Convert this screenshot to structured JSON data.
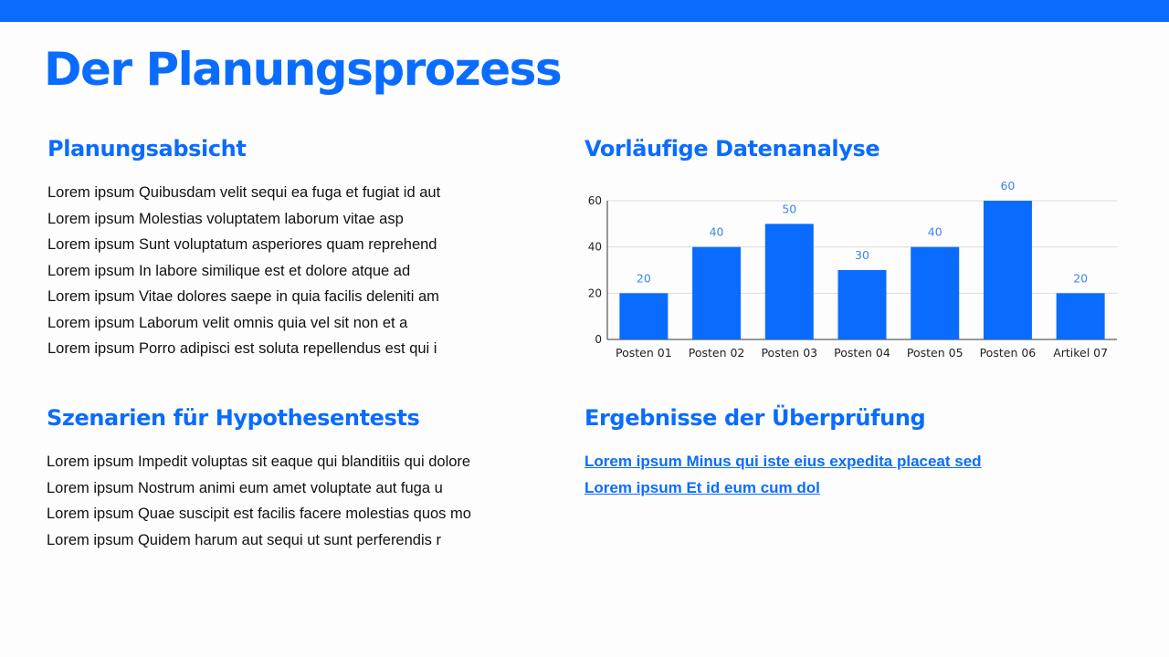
{
  "title": "Der Planungsprozess",
  "colors": {
    "accent": "#0a6cff",
    "bar": "#0a6cff",
    "data_label": "#3a86e8"
  },
  "planning": {
    "heading": "Planungsabsicht",
    "lines": [
      "Lorem ipsum Quibusdam velit sequi ea fuga et fugiat id aut",
      "Lorem ipsum Molestias voluptatem laborum vitae asp",
      "Lorem ipsum Sunt voluptatum asperiores quam reprehend",
      "Lorem ipsum In labore similique est et dolore atque ad",
      "Lorem ipsum Vitae dolores saepe in quia facilis deleniti am",
      "Lorem ipsum Laborum velit omnis quia vel sit non et a",
      "Lorem ipsum Porro adipisci est soluta repellendus est qui i"
    ]
  },
  "hypothesis": {
    "heading": "Szenarien für Hypothesentests",
    "lines": [
      "Lorem ipsum Impedit voluptas sit eaque qui blanditiis qui dolore",
      "Lorem ipsum Nostrum animi eum amet voluptate aut fuga u",
      "Lorem ipsum Quae suscipit est facilis facere molestias quos mo",
      "Lorem ipsum Quidem harum aut sequi ut sunt perferendis r"
    ]
  },
  "analysis": {
    "heading": "Vorläufige Datenanalyse"
  },
  "results": {
    "heading": "Ergebnisse der Überprüfung",
    "links": [
      "Lorem ipsum Minus qui iste eius expedita placeat sed",
      "Lorem ipsum Et id eum cum dol"
    ]
  },
  "chart_data": {
    "type": "bar",
    "categories": [
      "Posten 01",
      "Posten 02",
      "Posten 03",
      "Posten 04",
      "Posten 05",
      "Posten 06",
      "Artikel 07"
    ],
    "values": [
      20,
      40,
      50,
      30,
      40,
      60,
      20
    ],
    "ylim": [
      0,
      60
    ],
    "yticks": [
      0,
      20,
      40,
      60
    ],
    "grid": true,
    "data_labels": true
  }
}
